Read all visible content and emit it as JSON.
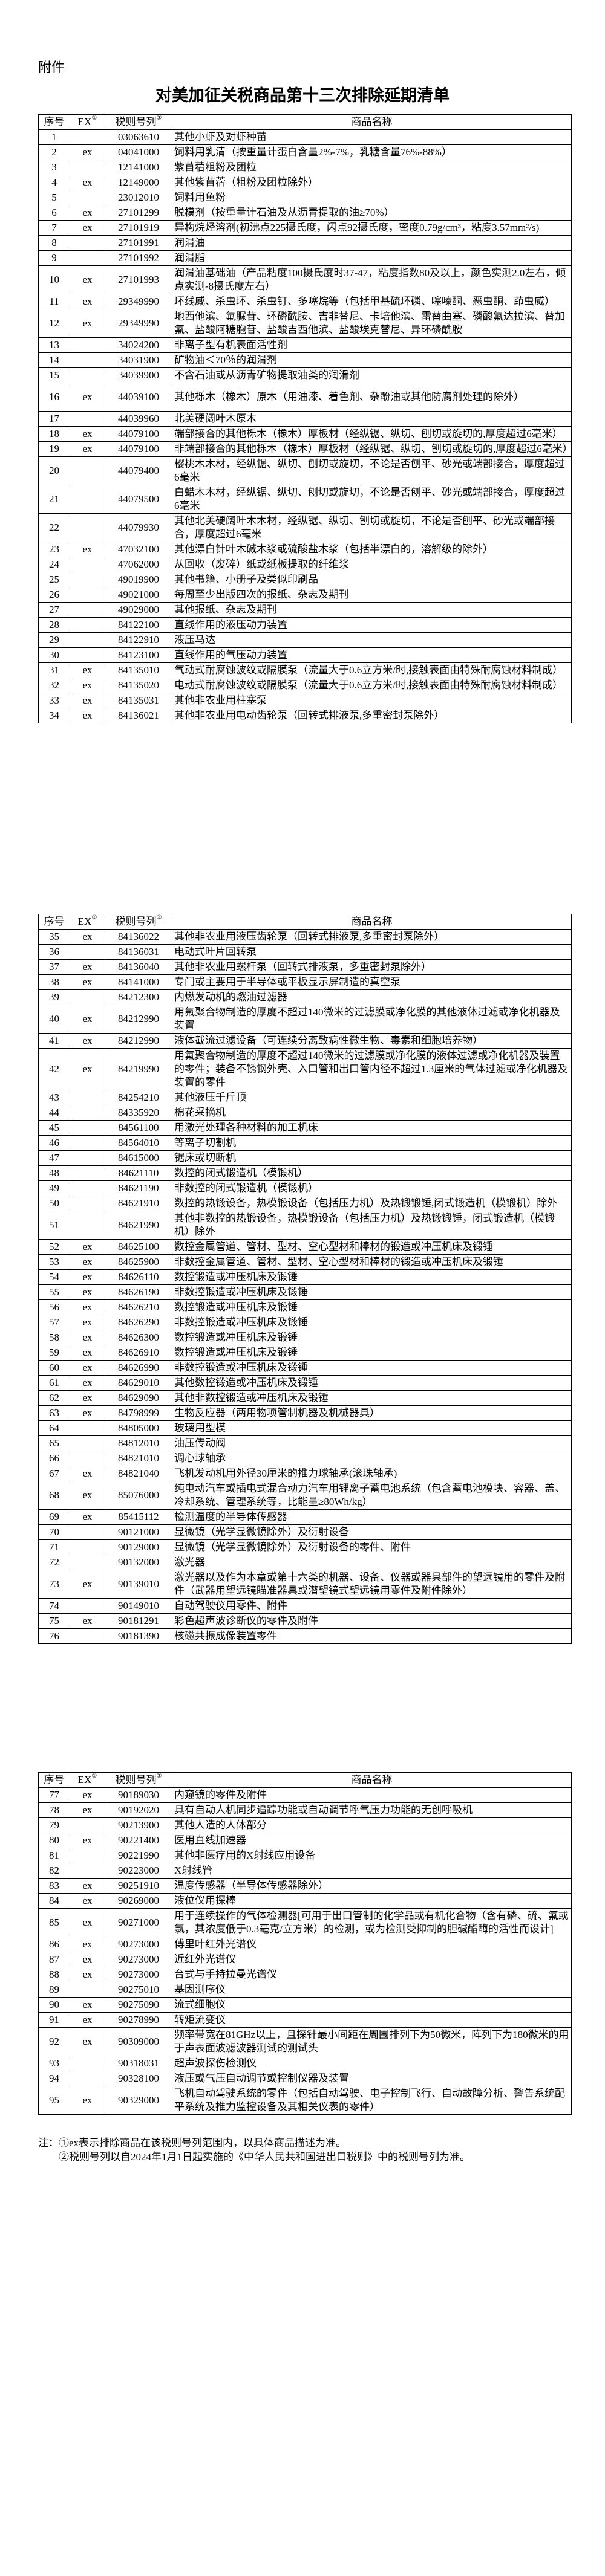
{
  "document": {
    "attachment_label": "附件",
    "title": "对美加征关税商品第十三次排除延期清单"
  },
  "header": {
    "seq": "序号",
    "ex": "EX",
    "ex_mark": "①",
    "code": "税则号列",
    "code_mark": "②",
    "name": "商品名称"
  },
  "tables": [
    {
      "rows": [
        {
          "no": "1",
          "ex": "",
          "code": "03063610",
          "name": "其他小虾及对虾种苗"
        },
        {
          "no": "2",
          "ex": "ex",
          "code": "04041000",
          "name": "饲料用乳清（按重量计蛋白含量2%-7%，乳糖含量76%-88%）"
        },
        {
          "no": "3",
          "ex": "",
          "code": "12141000",
          "name": "紫苜蓿粗粉及团粒"
        },
        {
          "no": "4",
          "ex": "ex",
          "code": "12149000",
          "name": "其他紫苜蓿（粗粉及团粒除外）"
        },
        {
          "no": "5",
          "ex": "",
          "code": "23012010",
          "name": "饲料用鱼粉"
        },
        {
          "no": "6",
          "ex": "ex",
          "code": "27101299",
          "name": "脱模剂（按重量计石油及从沥青提取的油≥70%）"
        },
        {
          "no": "7",
          "ex": "ex",
          "code": "27101919",
          "name": "异构烷烃溶剂(初沸点225摄氏度，闪点92摄氏度，密度0.79g/cm³，粘度3.57mm²/s)"
        },
        {
          "no": "8",
          "ex": "",
          "code": "27101991",
          "name": "润滑油"
        },
        {
          "no": "9",
          "ex": "",
          "code": "27101992",
          "name": "润滑脂"
        },
        {
          "no": "10",
          "ex": "ex",
          "code": "27101993",
          "name": "润滑油基础油（产品粘度100摄氏度时37-47，粘度指数80及以上，颜色实测2.0左右，倾点实测-8摄氏度左右）"
        },
        {
          "no": "11",
          "ex": "ex",
          "code": "29349990",
          "name": "环线威、杀虫环、杀虫钉、多噻烷等（包括甲基硫环磷、噻嗪酮、恶虫酮、茚虫威）"
        },
        {
          "no": "12",
          "ex": "ex",
          "code": "29349990",
          "name": "地西他滨、氟脲苷、环磷酰胺、吉非替尼、卡培他滨、雷替曲塞、磷酸氟达拉滨、替加氟、盐酸阿糖胞苷、盐酸吉西他滨、盐酸埃克替尼、异环磷酰胺"
        },
        {
          "no": "13",
          "ex": "",
          "code": "34024200",
          "name": "非离子型有机表面活性剂"
        },
        {
          "no": "14",
          "ex": "",
          "code": "34031900",
          "name": "矿物油＜70％的润滑剂"
        },
        {
          "no": "15",
          "ex": "",
          "code": "34039900",
          "name": "不含石油或从沥青矿物提取油类的润滑剂"
        },
        {
          "no": "16",
          "ex": "ex",
          "code": "44039100",
          "name": "其他栎木（橡木）原木（用油漆、着色剂、杂酚油或其他防腐剂处理的除外）"
        },
        {
          "no": "17",
          "ex": "",
          "code": "44039960",
          "name": "北美硬阔叶木原木"
        },
        {
          "no": "18",
          "ex": "ex",
          "code": "44079100",
          "name": "端部接合的其他栎木（橡木）厚板材（经纵锯、纵切、刨切或旋切的,厚度超过6毫米）"
        },
        {
          "no": "19",
          "ex": "ex",
          "code": "44079100",
          "name": "非端部接合的其他栎木（橡木）厚板材（经纵锯、纵切、刨切或旋切的,厚度超过6毫米）"
        },
        {
          "no": "20",
          "ex": "",
          "code": "44079400",
          "name": "樱桃木木材，经纵锯、纵切、刨切或旋切，不论是否刨平、砂光或端部接合，厚度超过6毫米"
        },
        {
          "no": "21",
          "ex": "",
          "code": "44079500",
          "name": "白蜡木木材，经纵锯、纵切、刨切或旋切，不论是否刨平、砂光或端部接合，厚度超过6毫米"
        },
        {
          "no": "22",
          "ex": "",
          "code": "44079930",
          "name": "其他北美硬阔叶木木材，经纵锯、纵切、刨切或旋切，不论是否刨平、砂光或端部接合，厚度超过6毫米"
        },
        {
          "no": "23",
          "ex": "ex",
          "code": "47032100",
          "name": "其他漂白针叶木碱木浆或硫酸盐木浆（包括半漂白的，溶解级的除外）"
        },
        {
          "no": "24",
          "ex": "",
          "code": "47062000",
          "name": "从回收（废碎）纸或纸板提取的纤维浆"
        },
        {
          "no": "25",
          "ex": "",
          "code": "49019900",
          "name": "其他书籍、小册子及类似印刷品"
        },
        {
          "no": "26",
          "ex": "",
          "code": "49021000",
          "name": "每周至少出版四次的报纸、杂志及期刊"
        },
        {
          "no": "27",
          "ex": "",
          "code": "49029000",
          "name": "其他报纸、杂志及期刊"
        },
        {
          "no": "28",
          "ex": "",
          "code": "84122100",
          "name": "直线作用的液压动力装置"
        },
        {
          "no": "29",
          "ex": "",
          "code": "84122910",
          "name": "液压马达"
        },
        {
          "no": "30",
          "ex": "",
          "code": "84123100",
          "name": "直线作用的气压动力装置"
        },
        {
          "no": "31",
          "ex": "ex",
          "code": "84135010",
          "name": "气动式耐腐蚀波纹或隔膜泵（流量大于0.6立方米/时,接触表面由特殊耐腐蚀材料制成）"
        },
        {
          "no": "32",
          "ex": "ex",
          "code": "84135020",
          "name": "电动式耐腐蚀波纹或隔膜泵（流量大于0.6立方米/时,接触表面由特殊耐腐蚀材料制成）"
        },
        {
          "no": "33",
          "ex": "ex",
          "code": "84135031",
          "name": "其他非农业用柱塞泵"
        },
        {
          "no": "34",
          "ex": "ex",
          "code": "84136021",
          "name": "其他非农业用电动齿轮泵（回转式排液泵,多重密封泵除外）"
        }
      ]
    },
    {
      "rows": [
        {
          "no": "35",
          "ex": "ex",
          "code": "84136022",
          "name": "其他非农业用液压齿轮泵（回转式排液泵,多重密封泵除外）"
        },
        {
          "no": "36",
          "ex": "",
          "code": "84136031",
          "name": "电动式叶片回转泵"
        },
        {
          "no": "37",
          "ex": "ex",
          "code": "84136040",
          "name": "其他非农业用螺杆泵（回转式排液泵，多重密封泵除外）"
        },
        {
          "no": "38",
          "ex": "ex",
          "code": "84141000",
          "name": "专门或主要用于半导体或平板显示屏制造的真空泵"
        },
        {
          "no": "39",
          "ex": "",
          "code": "84212300",
          "name": "内燃发动机的燃油过滤器"
        },
        {
          "no": "40",
          "ex": "ex",
          "code": "84212990",
          "name": "用氟聚合物制造的厚度不超过140微米的过滤膜或净化膜的其他液体过滤或净化机器及装置"
        },
        {
          "no": "41",
          "ex": "ex",
          "code": "84212990",
          "name": "液体截流过滤设备（可连续分离致病性微生物、毒素和细胞培养物）"
        },
        {
          "no": "42",
          "ex": "ex",
          "code": "84219990",
          "name": "用氟聚合物制造的厚度不超过140微米的过滤膜或净化膜的液体过滤或净化机器及装置的零件；装备不锈钢外壳、入口管和出口管内径不超过1.3厘米的气体过滤或净化机器及装置的零件"
        },
        {
          "no": "43",
          "ex": "",
          "code": "84254210",
          "name": "其他液压千斤顶"
        },
        {
          "no": "44",
          "ex": "",
          "code": "84335920",
          "name": "棉花采摘机"
        },
        {
          "no": "45",
          "ex": "",
          "code": "84561100",
          "name": "用激光处理各种材料的加工机床"
        },
        {
          "no": "46",
          "ex": "",
          "code": "84564010",
          "name": "等离子切割机"
        },
        {
          "no": "47",
          "ex": "",
          "code": "84615000",
          "name": "锯床或切断机"
        },
        {
          "no": "48",
          "ex": "",
          "code": "84621110",
          "name": "数控的闭式锻造机（模锻机）"
        },
        {
          "no": "49",
          "ex": "",
          "code": "84621190",
          "name": "非数控的闭式锻造机（模锻机）"
        },
        {
          "no": "50",
          "ex": "",
          "code": "84621910",
          "name": "数控的热锻设备，热模锻设备（包括压力机）及热锻锻锤,闭式锻造机（模锻机）除外"
        },
        {
          "no": "51",
          "ex": "",
          "code": "84621990",
          "name": "其他非数控的热锻设备，热模锻设备（包括压力机）及热锻锻锤，闭式锻造机（模锻机）除外"
        },
        {
          "no": "52",
          "ex": "ex",
          "code": "84625100",
          "name": "数控金属管道、管材、型材、空心型材和棒材的锻造或冲压机床及锻锤"
        },
        {
          "no": "53",
          "ex": "ex",
          "code": "84625900",
          "name": "非数控金属管道、管材、型材、空心型材和棒材的锻造或冲压机床及锻锤"
        },
        {
          "no": "54",
          "ex": "ex",
          "code": "84626110",
          "name": "数控锻造或冲压机床及锻锤"
        },
        {
          "no": "55",
          "ex": "ex",
          "code": "84626190",
          "name": "非数控锻造或冲压机床及锻锤"
        },
        {
          "no": "56",
          "ex": "ex",
          "code": "84626210",
          "name": "数控锻造或冲压机床及锻锤"
        },
        {
          "no": "57",
          "ex": "ex",
          "code": "84626290",
          "name": "非数控锻造或冲压机床及锻锤"
        },
        {
          "no": "58",
          "ex": "ex",
          "code": "84626300",
          "name": "数控锻造或冲压机床及锻锤"
        },
        {
          "no": "59",
          "ex": "ex",
          "code": "84626910",
          "name": "数控锻造或冲压机床及锻锤"
        },
        {
          "no": "60",
          "ex": "ex",
          "code": "84626990",
          "name": "非数控锻造或冲压机床及锻锤"
        },
        {
          "no": "61",
          "ex": "ex",
          "code": "84629010",
          "name": "其他数控锻造或冲压机床及锻锤"
        },
        {
          "no": "62",
          "ex": "ex",
          "code": "84629090",
          "name": "其他非数控锻造或冲压机床及锻锤"
        },
        {
          "no": "63",
          "ex": "ex",
          "code": "84798999",
          "name": "生物反应器（两用物项管制机器及机械器具）"
        },
        {
          "no": "64",
          "ex": "",
          "code": "84805000",
          "name": "玻璃用型模"
        },
        {
          "no": "65",
          "ex": "",
          "code": "84812010",
          "name": "油压传动阀"
        },
        {
          "no": "66",
          "ex": "",
          "code": "84821010",
          "name": "调心球轴承"
        },
        {
          "no": "67",
          "ex": "ex",
          "code": "84821040",
          "name": "飞机发动机用外径30厘米的推力球轴承(滚珠轴承)"
        },
        {
          "no": "68",
          "ex": "ex",
          "code": "85076000",
          "name": "纯电动汽车或插电式混合动力汽车用锂离子蓄电池系统（包含蓄电池模块、容器、盖、冷却系统、管理系统等，比能量≥80Wh/kg）"
        },
        {
          "no": "69",
          "ex": "ex",
          "code": "85415112",
          "name": "检测温度的半导体传感器"
        },
        {
          "no": "70",
          "ex": "",
          "code": "90121000",
          "name": "显微镜（光学显微镜除外）及衍射设备"
        },
        {
          "no": "71",
          "ex": "",
          "code": "90129000",
          "name": "显微镜（光学显微镜除外）及衍射设备的零件、附件"
        },
        {
          "no": "72",
          "ex": "",
          "code": "90132000",
          "name": "激光器"
        },
        {
          "no": "73",
          "ex": "ex",
          "code": "90139010",
          "name": "激光器以及作为本章或第十六类的机器、设备、仪器或器具部件的望远镜用的零件及附件（武器用望远镜瞄准器具或潜望镜式望远镜用零件及附件除外）"
        },
        {
          "no": "74",
          "ex": "",
          "code": "90149010",
          "name": "自动驾驶仪用零件、附件"
        },
        {
          "no": "75",
          "ex": "ex",
          "code": "90181291",
          "name": "彩色超声波诊断仪的零件及附件"
        },
        {
          "no": "76",
          "ex": "",
          "code": "90181390",
          "name": "核磁共振成像装置零件"
        }
      ]
    },
    {
      "rows": [
        {
          "no": "77",
          "ex": "ex",
          "code": "90189030",
          "name": "内窥镜的零件及附件"
        },
        {
          "no": "78",
          "ex": "ex",
          "code": "90192020",
          "name": "具有自动人机同步追踪功能或自动调节呼气压力功能的无创呼吸机"
        },
        {
          "no": "79",
          "ex": "",
          "code": "90213900",
          "name": "其他人造的人体部分"
        },
        {
          "no": "80",
          "ex": "ex",
          "code": "90221400",
          "name": "医用直线加速器"
        },
        {
          "no": "81",
          "ex": "",
          "code": "90221990",
          "name": "其他非医疗用的X射线应用设备"
        },
        {
          "no": "82",
          "ex": "",
          "code": "90223000",
          "name": "X射线管"
        },
        {
          "no": "83",
          "ex": "ex",
          "code": "90251910",
          "name": "温度传感器（半导体传感器除外）"
        },
        {
          "no": "84",
          "ex": "ex",
          "code": "90269000",
          "name": "液位仪用探棒"
        },
        {
          "no": "85",
          "ex": "ex",
          "code": "90271000",
          "name": "用于连续操作的气体检测器[可用于出口管制的化学品或有机化合物（含有磷、硫、氟或氯，其浓度低于0.3毫克/立方米）的检测，或为检测受抑制的胆碱酯酶的活性而设计]"
        },
        {
          "no": "86",
          "ex": "ex",
          "code": "90273000",
          "name": "傅里叶红外光谱仪"
        },
        {
          "no": "87",
          "ex": "ex",
          "code": "90273000",
          "name": "近红外光谱仪"
        },
        {
          "no": "88",
          "ex": "ex",
          "code": "90273000",
          "name": "台式与手持拉曼光谱仪"
        },
        {
          "no": "89",
          "ex": "",
          "code": "90275010",
          "name": "基因测序仪"
        },
        {
          "no": "90",
          "ex": "ex",
          "code": "90275090",
          "name": "流式细胞仪"
        },
        {
          "no": "91",
          "ex": "ex",
          "code": "90278990",
          "name": "转矩流变仪"
        },
        {
          "no": "92",
          "ex": "ex",
          "code": "90309000",
          "name": "频率带宽在81GHz以上，且探针最小间距在周围排列下为50微米，阵列下为180微米的用于声表面波滤波器测试的测试头"
        },
        {
          "no": "93",
          "ex": "",
          "code": "90318031",
          "name": "超声波探伤检测仪"
        },
        {
          "no": "94",
          "ex": "",
          "code": "90328100",
          "name": "液压或气压自动调节或控制仪器及装置"
        },
        {
          "no": "95",
          "ex": "ex",
          "code": "90329000",
          "name": "飞机自动驾驶系统的零件（包括自动驾驶、电子控制飞行、自动故障分析、警告系统配平系统及推力监控设备及其相关仪表的零件）"
        }
      ]
    }
  ],
  "notes": {
    "line1": "注：①ex表示排除商品在该税则号列范围内，以具体商品描述为准。",
    "line2": "②税则号列以自2024年1月1日起实施的《中华人民共和国进出口税则》中的税则号列为准。"
  }
}
